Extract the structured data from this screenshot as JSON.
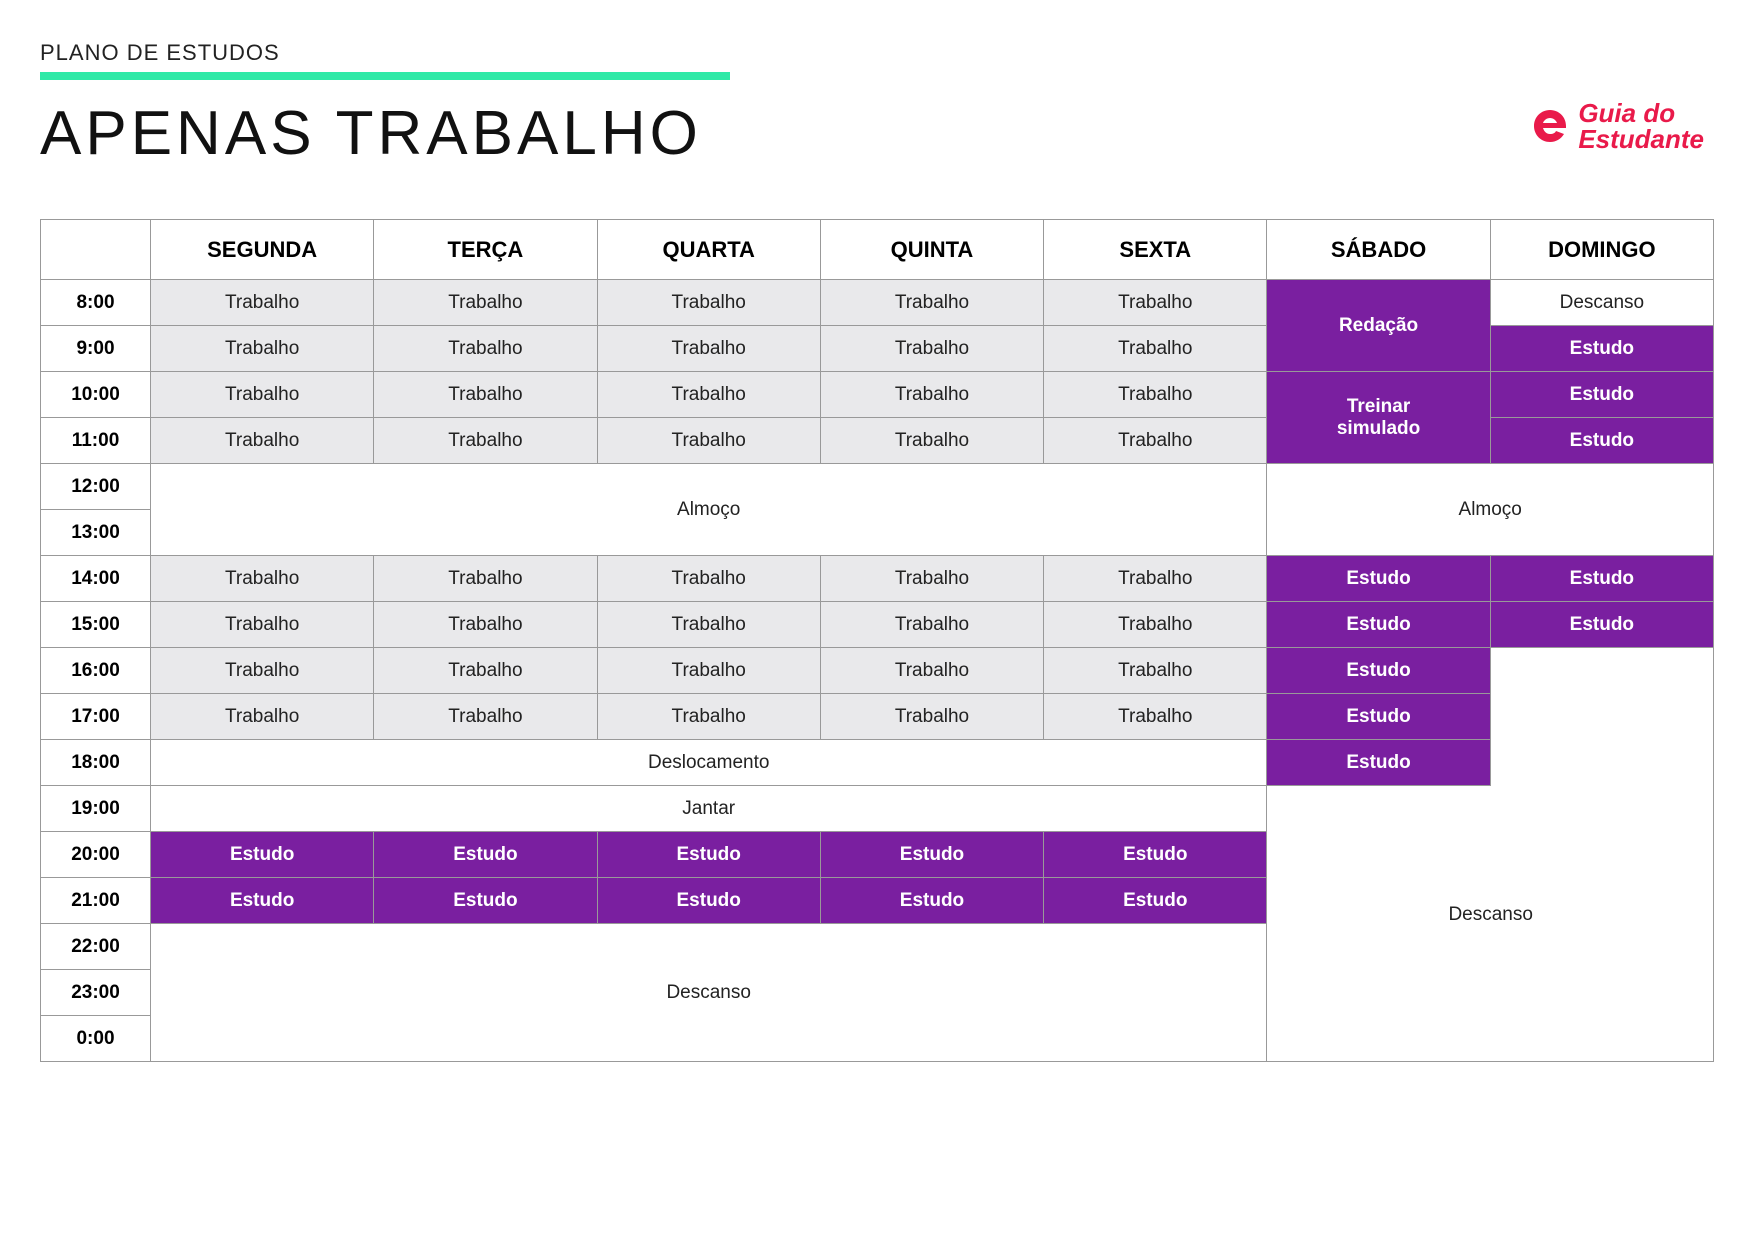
{
  "header": {
    "subtitle": "PLANO DE ESTUDOS",
    "title": "APENAS TRABALHO",
    "logo_line1": "Guia do",
    "logo_line2": "Estudante"
  },
  "colors": {
    "teal": "#2fe9a7",
    "purple": "#7a1fa0",
    "purple_alt": "#8327ab",
    "grey": "#e9e9eb",
    "logo_red": "#e91a4a",
    "border": "#999999"
  },
  "days": [
    "SEGUNDA",
    "TERÇA",
    "QUARTA",
    "QUINTA",
    "SEXTA",
    "SÁBADO",
    "DOMINGO"
  ],
  "times": [
    "8:00",
    "9:00",
    "10:00",
    "11:00",
    "12:00",
    "13:00",
    "14:00",
    "15:00",
    "16:00",
    "17:00",
    "18:00",
    "19:00",
    "20:00",
    "21:00",
    "22:00",
    "23:00",
    "0:00"
  ],
  "labels": {
    "trabalho": "Trabalho",
    "almoco": "Almoço",
    "deslocamento": "Deslocamento",
    "jantar": "Jantar",
    "estudo": "Estudo",
    "descanso": "Descanso",
    "redacao": "Redação",
    "treinar_simulado": "Treinar simulado"
  }
}
